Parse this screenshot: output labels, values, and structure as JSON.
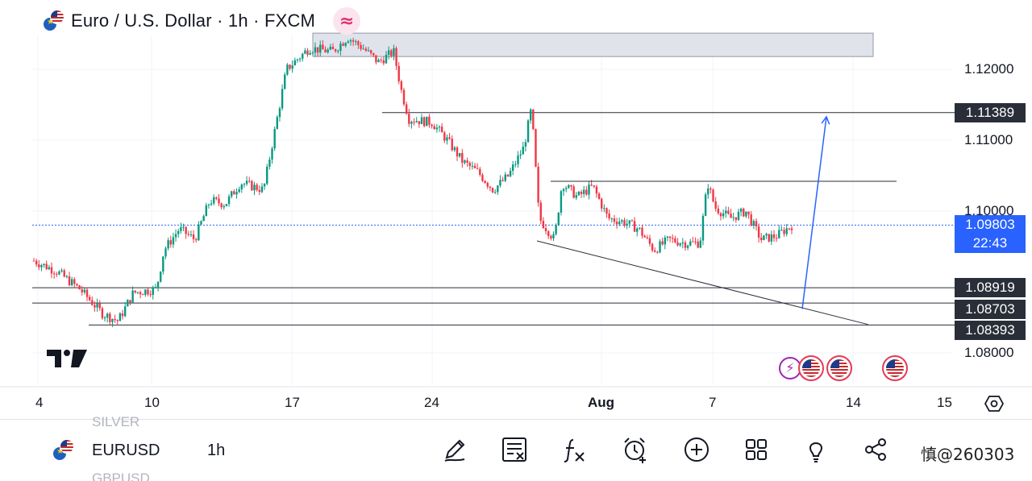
{
  "header": {
    "title": "Euro / U.S. Dollar · 1h · FXCM",
    "badge_glyph": "≈"
  },
  "price_axis": {
    "labels": [
      "1.12000",
      "1.11000",
      "1.10000",
      "1.08000"
    ],
    "levels": {
      "upper": "1.11389",
      "s1": "1.08919",
      "s2": "1.08703",
      "s3": "1.08393"
    },
    "current_price": "1.09803",
    "countdown": "22:43"
  },
  "time_axis": {
    "labels": [
      "4",
      "10",
      "17",
      "24",
      "Aug",
      "7",
      "14",
      "15"
    ]
  },
  "toolbar": {
    "symbol": "EURUSD",
    "interval": "1h",
    "ghost_above": "SILVER",
    "ghost_below": "GBPUSD",
    "watermark": "慎@260303",
    "icons": [
      "draw-icon",
      "object-tree-icon",
      "indicators-icon",
      "alert-icon",
      "add-icon",
      "layout-icon",
      "ideas-icon",
      "share-icon"
    ]
  },
  "colors": {
    "bull": "#089981",
    "bear": "#f23645",
    "projection": "#2962ff",
    "level_line": "#2a2e39",
    "resistance_zone": "#e0e3eb",
    "current_price": "#2962ff"
  },
  "chart_data": {
    "type": "candlestick",
    "symbol": "EURUSD",
    "exchange": "FXCM",
    "interval": "1h",
    "y_range": [
      1.0775,
      1.1255
    ],
    "y_ticks": [
      1.12,
      1.11,
      1.1,
      1.08
    ],
    "x_ticks": [
      "4",
      "10",
      "17",
      "24",
      "Aug",
      "7",
      "14",
      "15"
    ],
    "current_price": 1.09803,
    "horizontal_levels": [
      1.11389,
      1.08919,
      1.08703,
      1.08393
    ],
    "resistance_zone": [
      1.1218,
      1.1251
    ],
    "price_path": [
      {
        "t": 0,
        "p": 1.093
      },
      {
        "t": 3,
        "p": 1.0915
      },
      {
        "t": 6,
        "p": 1.089
      },
      {
        "t": 9,
        "p": 1.0855
      },
      {
        "t": 11,
        "p": 1.0845
      },
      {
        "t": 13,
        "p": 1.0885
      },
      {
        "t": 16,
        "p": 1.089
      },
      {
        "t": 17,
        "p": 1.0945
      },
      {
        "t": 19,
        "p": 1.0975
      },
      {
        "t": 21,
        "p": 1.096
      },
      {
        "t": 23,
        "p": 1.1015
      },
      {
        "t": 25,
        "p": 1.101
      },
      {
        "t": 27,
        "p": 1.104
      },
      {
        "t": 30,
        "p": 1.103
      },
      {
        "t": 33,
        "p": 1.12
      },
      {
        "t": 36,
        "p": 1.123
      },
      {
        "t": 39,
        "p": 1.1225
      },
      {
        "t": 41,
        "p": 1.1245
      },
      {
        "t": 43,
        "p": 1.123
      },
      {
        "t": 45,
        "p": 1.121
      },
      {
        "t": 47,
        "p": 1.1225
      },
      {
        "t": 48,
        "p": 1.117
      },
      {
        "t": 49,
        "p": 1.113
      },
      {
        "t": 52,
        "p": 1.1125
      },
      {
        "t": 54,
        "p": 1.11
      },
      {
        "t": 56,
        "p": 1.107
      },
      {
        "t": 58,
        "p": 1.1055
      },
      {
        "t": 60,
        "p": 1.103
      },
      {
        "t": 62,
        "p": 1.105
      },
      {
        "t": 64,
        "p": 1.109
      },
      {
        "t": 65,
        "p": 1.1145
      },
      {
        "t": 66,
        "p": 1.099
      },
      {
        "t": 67,
        "p": 1.0975
      },
      {
        "t": 68,
        "p": 1.096
      },
      {
        "t": 69,
        "p": 1.104
      },
      {
        "t": 71,
        "p": 1.102
      },
      {
        "t": 73,
        "p": 1.1035
      },
      {
        "t": 75,
        "p": 1.099
      },
      {
        "t": 77,
        "p": 1.0985
      },
      {
        "t": 79,
        "p": 1.0975
      },
      {
        "t": 81,
        "p": 1.0945
      },
      {
        "t": 83,
        "p": 1.096
      },
      {
        "t": 85,
        "p": 1.0955
      },
      {
        "t": 87,
        "p": 1.0955
      },
      {
        "t": 88,
        "p": 1.104
      },
      {
        "t": 89,
        "p": 1.1005
      },
      {
        "t": 91,
        "p": 1.099
      },
      {
        "t": 93,
        "p": 1.1
      },
      {
        "t": 95,
        "p": 1.096
      },
      {
        "t": 97,
        "p": 1.0965
      },
      {
        "t": 99,
        "p": 1.098
      }
    ],
    "drawings": [
      {
        "type": "horizontal-segment",
        "price": 1.1042,
        "from": "Aug-1",
        "to": "Aug-13"
      },
      {
        "type": "trendline",
        "from_price": 1.0958,
        "to_price": 1.084
      },
      {
        "type": "arrow",
        "from_price": 1.0862,
        "to_price": 1.1133
      }
    ]
  }
}
